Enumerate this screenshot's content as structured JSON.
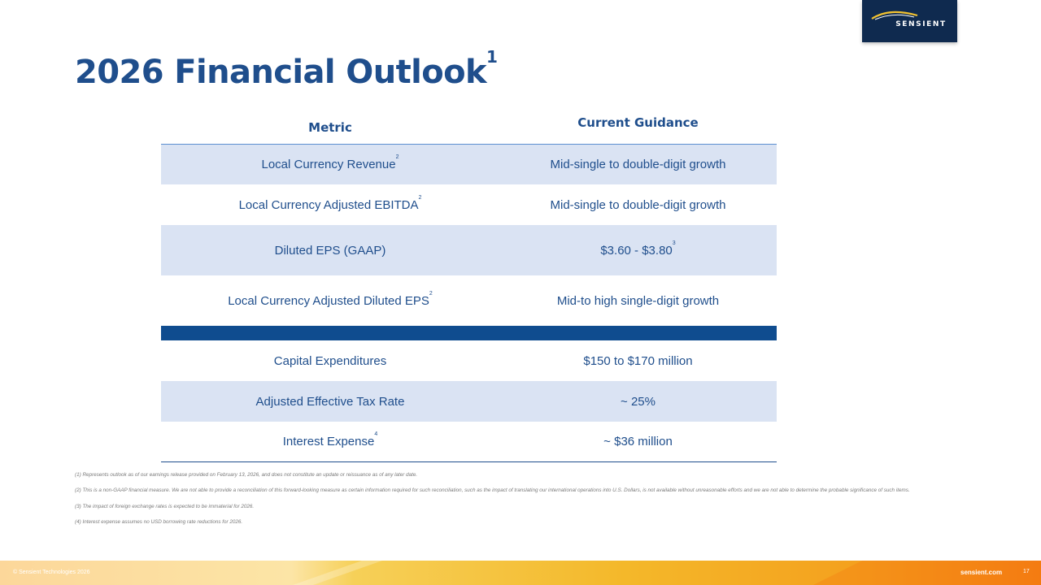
{
  "brand": {
    "logo_text": "SENSIENT"
  },
  "title": {
    "text": "2026 Financial Outlook",
    "sup": "1"
  },
  "table": {
    "headers": {
      "metric": "Metric",
      "guidance": "Current Guidance"
    },
    "rows": [
      {
        "metric": "Local Currency Revenue",
        "metric_sup": "2",
        "guidance": "Mid-single to double-digit growth",
        "guidance_sup": ""
      },
      {
        "metric": "Local Currency Adjusted EBITDA",
        "metric_sup": "2",
        "guidance": "Mid-single to double-digit growth",
        "guidance_sup": ""
      },
      {
        "metric": "Diluted EPS (GAAP)",
        "metric_sup": "",
        "guidance": "$3.60 - $3.80",
        "guidance_sup": "3"
      },
      {
        "metric": "Local Currency Adjusted Diluted EPS",
        "metric_sup": "2",
        "guidance": "Mid-to high single-digit growth",
        "guidance_sup": ""
      },
      {
        "metric": "Capital Expenditures",
        "metric_sup": "",
        "guidance": "$150 to $170 million",
        "guidance_sup": ""
      },
      {
        "metric": "Adjusted Effective Tax Rate",
        "metric_sup": "",
        "guidance": "~ 25%",
        "guidance_sup": ""
      },
      {
        "metric": "Interest Expense",
        "metric_sup": "4",
        "guidance": "~ $36 million",
        "guidance_sup": ""
      }
    ]
  },
  "footnotes": [
    "(1) Represents outlook as of our earnings release provided on February 13, 2026, and does not constitute an update or reissuance as of any later date.",
    "(2) This is a non-GAAP financial measure. We are not able to provide a reconciliation of this forward-looking measure as certain information required for such reconciliation, such as the impact of translating our international operations into U.S. Dollars, is not available without unreasonable efforts and we are not able to determine the probable significance of such items.",
    "(3) The impact of foreign exchange rates is expected to be immaterial for 2026.",
    "(4) Interest expense assumes no USD borrowing rate reductions for 2026."
  ],
  "footer": {
    "copyright": "© Sensient Technologies 2026",
    "website": "sensient.com",
    "page_number": "17"
  },
  "colors": {
    "title": "#1f4e8c",
    "shade": "#dae3f3",
    "divider": "#0f4c8f",
    "logo_bg": "#0f2a4f"
  }
}
